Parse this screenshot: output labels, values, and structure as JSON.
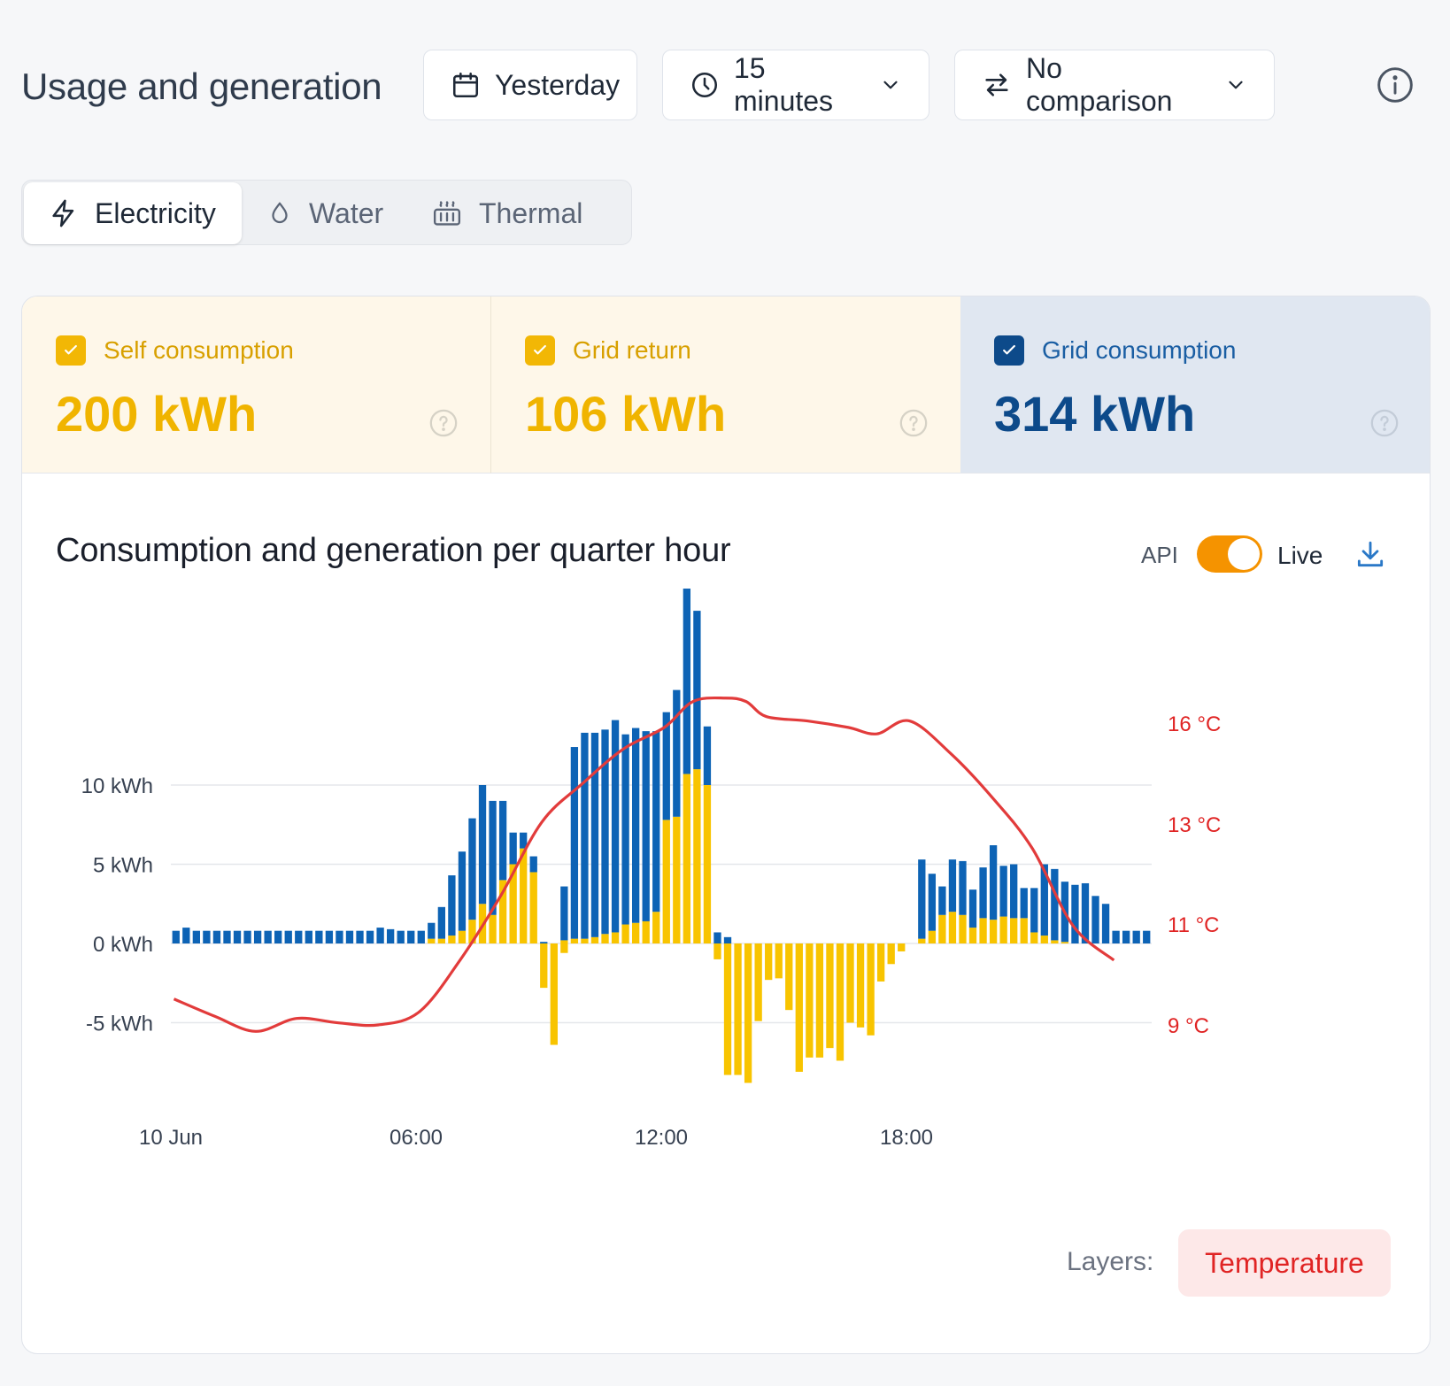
{
  "header": {
    "title": "Usage and generation",
    "date_label": "Yesterday",
    "interval_label": "15 minutes",
    "comparison_label": "No comparison"
  },
  "tabs": [
    {
      "label": "Electricity",
      "icon": "lightning-icon",
      "active": true
    },
    {
      "label": "Water",
      "icon": "droplet-icon",
      "active": false
    },
    {
      "label": "Thermal",
      "icon": "heater-icon",
      "active": false
    }
  ],
  "stats": [
    {
      "label": "Self consumption",
      "value": "200 kWh",
      "checked": true,
      "color": "#f2b705"
    },
    {
      "label": "Grid return",
      "value": "106 kWh",
      "checked": true,
      "color": "#f2b705"
    },
    {
      "label": "Grid consumption",
      "value": "314 kWh",
      "checked": true,
      "color": "#0d4a8a"
    }
  ],
  "chart_header": {
    "title": "Consumption and generation per quarter hour",
    "api_label": "API",
    "live_label": "Live",
    "live_enabled": true
  },
  "layers": {
    "label": "Layers:",
    "items": [
      "Temperature"
    ]
  },
  "chart_data": {
    "type": "bar",
    "stacked": true,
    "ylabel_ticks": [
      "10 kWh",
      "5 kWh",
      "0 kWh",
      "-5 kWh"
    ],
    "y_ticks": [
      10,
      5,
      0,
      -5
    ],
    "ylim": [
      -9,
      21
    ],
    "y2_ticks": [
      "16 °C",
      "13 °C",
      "11 °C",
      "9 °C"
    ],
    "x_tick_labels": [
      "10 Jun",
      "06:00",
      "12:00",
      "18:00"
    ],
    "x_tick_hours": [
      0,
      6,
      12,
      18
    ],
    "interval_hours": 0.25,
    "colors": {
      "self": "#f8c400",
      "grid": "#0d63b5",
      "temperature": "#e23b3b",
      "gridline": "#e5e7eb"
    },
    "series": [
      {
        "name": "Self consumption",
        "values": [
          0,
          0,
          0,
          0,
          0,
          0,
          0,
          0,
          0,
          0,
          0,
          0,
          0,
          0,
          0,
          0,
          0,
          0,
          0,
          0,
          0,
          0,
          0,
          0,
          0,
          0.3,
          0.3,
          0.5,
          0.8,
          1.5,
          2.5,
          1.8,
          4,
          5,
          6,
          4.5,
          0,
          0,
          0.2,
          0.3,
          0.3,
          0.4,
          0.6,
          0.7,
          1.2,
          1.3,
          1.4,
          2,
          7.8,
          8,
          10.7,
          11,
          10,
          0,
          0,
          0,
          0,
          0,
          0,
          0,
          0,
          0,
          0,
          0,
          0,
          0,
          0,
          0,
          0,
          0,
          0,
          0,
          0,
          0.3,
          0.8,
          1.8,
          2,
          1.8,
          1,
          1.6,
          1.5,
          1.7,
          1.6,
          1.6,
          0.7,
          0.5,
          0.2,
          0.1,
          0,
          0,
          0,
          0,
          0,
          0,
          0
        ]
      },
      {
        "name": "Grid consumption",
        "values": [
          0.8,
          1,
          0.8,
          0.8,
          0.8,
          0.8,
          0.8,
          0.8,
          0.8,
          0.8,
          0.8,
          0.8,
          0.8,
          0.8,
          0.8,
          0.8,
          0.8,
          0.8,
          0.8,
          0.8,
          1,
          0.9,
          0.8,
          0.8,
          0.8,
          1,
          2,
          3.8,
          5,
          6.4,
          7.5,
          7.2,
          5,
          2,
          1,
          1,
          0.1,
          0,
          3.4,
          12.1,
          13,
          12.9,
          12.9,
          13.4,
          12,
          12.3,
          12,
          11.4,
          6.8,
          8,
          11.7,
          10,
          3.7,
          0.7,
          0.4,
          0,
          0,
          0,
          0,
          0,
          0,
          0,
          0,
          0,
          0,
          0,
          0,
          0,
          0,
          0,
          0,
          0,
          0,
          5,
          3.6,
          1.8,
          3.3,
          3.4,
          2.4,
          3.2,
          4.7,
          3.2,
          3.4,
          1.9,
          2.8,
          4.5,
          4.5,
          3.8,
          3.7,
          3.8,
          3,
          2.5,
          0.8,
          0.8,
          0.8,
          0.8
        ]
      },
      {
        "name": "Grid return",
        "values": [
          0,
          0,
          0,
          0,
          0,
          0,
          0,
          0,
          0,
          0,
          0,
          0,
          0,
          0,
          0,
          0,
          0,
          0,
          0,
          0,
          0,
          0,
          0,
          0,
          0,
          0,
          0,
          0,
          0,
          0,
          0,
          0,
          0,
          0,
          0,
          0,
          -2.8,
          -6.4,
          -0.6,
          0,
          0,
          0,
          0,
          0,
          0,
          0,
          0,
          0,
          0,
          0,
          0,
          0,
          0,
          -1,
          -8.3,
          -8.3,
          -8.8,
          -4.9,
          -2.3,
          -2.2,
          -4.2,
          -8.1,
          -7.2,
          -7.2,
          -6.6,
          -7.4,
          -5,
          -5.3,
          -5.8,
          -2.4,
          -1.3,
          -0.5,
          0,
          0,
          0,
          0,
          0,
          0,
          0,
          0,
          0,
          0,
          0,
          0,
          0,
          0,
          0,
          0,
          0,
          0,
          0,
          0,
          0,
          0,
          0,
          0
        ]
      },
      {
        "name": "Temperature",
        "axis": "secondary",
        "points_hour_celsius": [
          [
            0,
            9.6
          ],
          [
            1,
            9.2
          ],
          [
            2,
            8.85
          ],
          [
            3,
            9.15
          ],
          [
            4,
            9.05
          ],
          [
            5,
            9.0
          ],
          [
            6,
            9.3
          ],
          [
            7,
            10.5
          ],
          [
            8,
            12.0
          ],
          [
            9,
            13.7
          ],
          [
            10,
            14.6
          ],
          [
            11,
            15.4
          ],
          [
            12,
            15.9
          ],
          [
            12.7,
            16.5
          ],
          [
            13.5,
            16.58
          ],
          [
            14,
            16.5
          ],
          [
            14.5,
            16.15
          ],
          [
            15.5,
            16.05
          ],
          [
            16.5,
            15.9
          ],
          [
            17.2,
            15.75
          ],
          [
            18,
            16.05
          ],
          [
            19,
            15.3
          ],
          [
            20,
            14.3
          ],
          [
            21,
            13.1
          ],
          [
            22,
            11.3
          ],
          [
            23,
            10.5
          ]
        ],
        "y2_ticks_values": [
          16,
          13,
          11,
          9
        ]
      }
    ]
  }
}
